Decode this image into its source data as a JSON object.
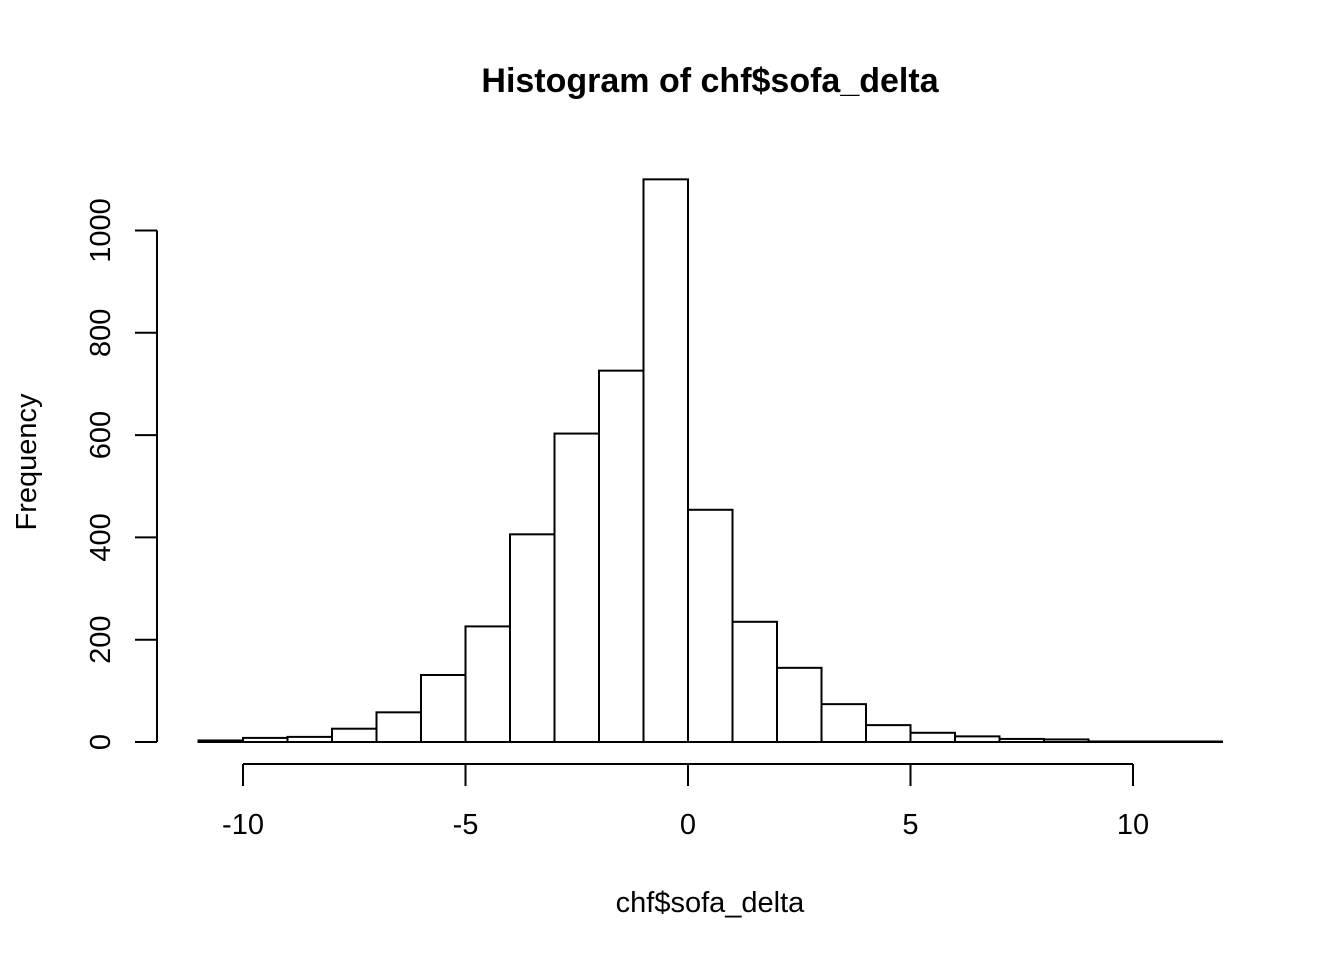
{
  "chart_data": {
    "type": "bar",
    "title": "Histogram of chf$sofa_delta",
    "xlabel": "chf$sofa_delta",
    "ylabel": "Frequency",
    "bin_width": 1,
    "bins": [
      {
        "start": -11,
        "end": -10,
        "count": 3
      },
      {
        "start": -10,
        "end": -9,
        "count": 8
      },
      {
        "start": -9,
        "end": -8,
        "count": 10
      },
      {
        "start": -8,
        "end": -7,
        "count": 26
      },
      {
        "start": -7,
        "end": -6,
        "count": 58
      },
      {
        "start": -6,
        "end": -5,
        "count": 131
      },
      {
        "start": -5,
        "end": -4,
        "count": 226
      },
      {
        "start": -4,
        "end": -3,
        "count": 406
      },
      {
        "start": -3,
        "end": -2,
        "count": 603
      },
      {
        "start": -2,
        "end": -1,
        "count": 726
      },
      {
        "start": -1,
        "end": 0,
        "count": 1100
      },
      {
        "start": 0,
        "end": 1,
        "count": 454
      },
      {
        "start": 1,
        "end": 2,
        "count": 235
      },
      {
        "start": 2,
        "end": 3,
        "count": 145
      },
      {
        "start": 3,
        "end": 4,
        "count": 74
      },
      {
        "start": 4,
        "end": 5,
        "count": 33
      },
      {
        "start": 5,
        "end": 6,
        "count": 18
      },
      {
        "start": 6,
        "end": 7,
        "count": 11
      },
      {
        "start": 7,
        "end": 8,
        "count": 6
      },
      {
        "start": 8,
        "end": 9,
        "count": 5
      },
      {
        "start": 9,
        "end": 10,
        "count": 1
      },
      {
        "start": 10,
        "end": 11,
        "count": 1
      },
      {
        "start": 11,
        "end": 12,
        "count": 1
      }
    ],
    "x_ticks": [
      -10,
      -5,
      0,
      5,
      10
    ],
    "y_ticks": [
      0,
      200,
      400,
      600,
      800,
      1000
    ],
    "xlim": [
      -10,
      10
    ],
    "ylim": [
      0,
      1000
    ],
    "grid": false,
    "legend": "none",
    "colors": {
      "bar_fill": "#ffffff",
      "bar_stroke": "#000000"
    }
  }
}
